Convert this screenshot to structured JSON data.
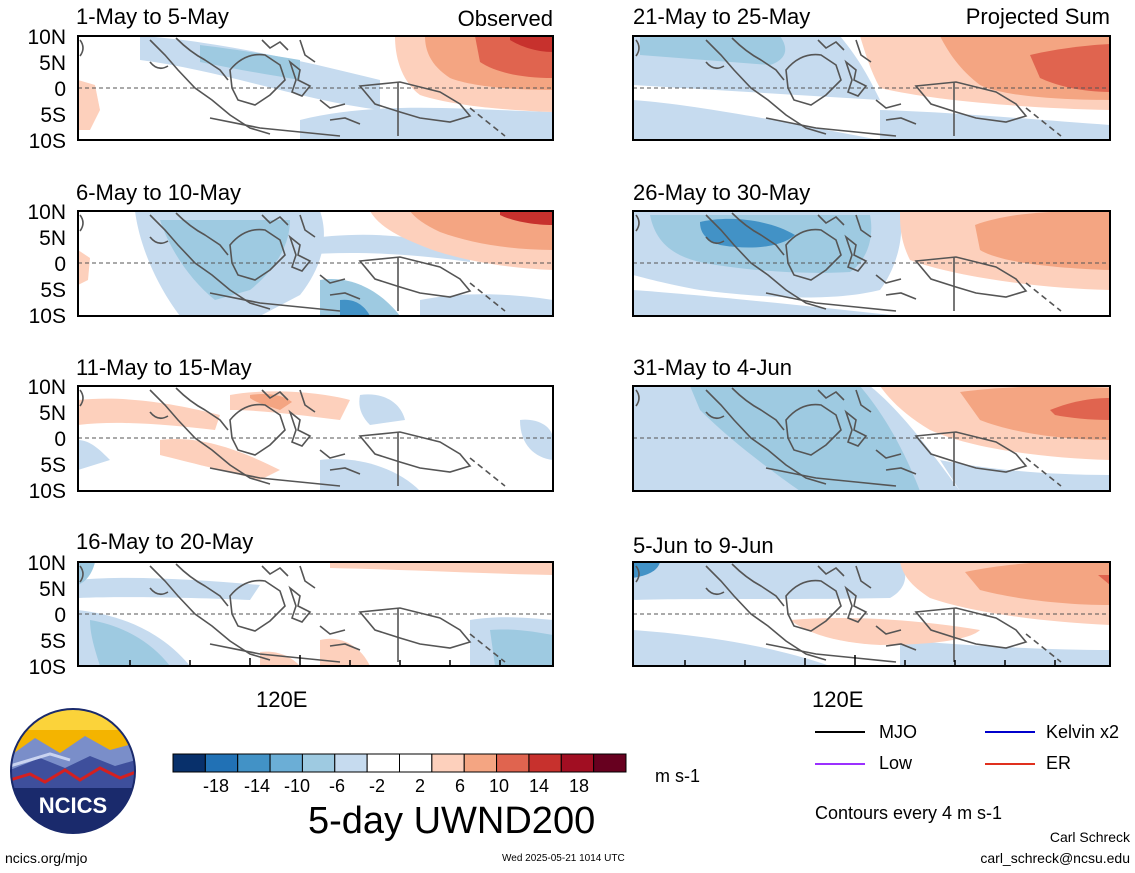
{
  "header": {
    "left_tag": "Observed",
    "right_tag": "Projected Sum"
  },
  "y_tick_labels": [
    "10N",
    "5N",
    "0",
    "5S",
    "10S"
  ],
  "x_tick_label": "120E",
  "panels_left": [
    {
      "title": "1-May to 5-May"
    },
    {
      "title": "6-May to 10-May"
    },
    {
      "title": "11-May to 15-May"
    },
    {
      "title": "16-May to 20-May"
    }
  ],
  "panels_right": [
    {
      "title": "21-May to 25-May"
    },
    {
      "title": "26-May to 30-May"
    },
    {
      "title": "31-May to 4-Jun"
    },
    {
      "title": "5-Jun to 9-Jun"
    }
  ],
  "colorbar": {
    "colors": [
      "#08306b",
      "#2171b5",
      "#4292c6",
      "#6baed6",
      "#9ecae1",
      "#c6dbef",
      "#ffffff",
      "#ffffff",
      "#fdd0bc",
      "#f4a582",
      "#e0644f",
      "#c7312d",
      "#a10e22",
      "#67001f"
    ],
    "labels": [
      "-18",
      "-14",
      "-10",
      "-6",
      "-2",
      "2",
      "6",
      "10",
      "14",
      "18"
    ],
    "units": "m s-1",
    "title": "5-day UWND200"
  },
  "legend": {
    "items": [
      {
        "label": "MJO",
        "color": "#000000"
      },
      {
        "label": "Kelvin x2",
        "color": "#0000cc"
      },
      {
        "label": "Low",
        "color": "#9b30ff"
      },
      {
        "label": "ER",
        "color": "#e0301e"
      }
    ],
    "note": "Contours every 4 m s-1"
  },
  "logo": {
    "text": "NCICS"
  },
  "footer": {
    "url": "ncics.org/mjo",
    "timestamp": "Wed 2025-05-21 1014 UTC",
    "author": "Carl Schreck",
    "email": "carl_schreck@ncsu.edu"
  }
}
